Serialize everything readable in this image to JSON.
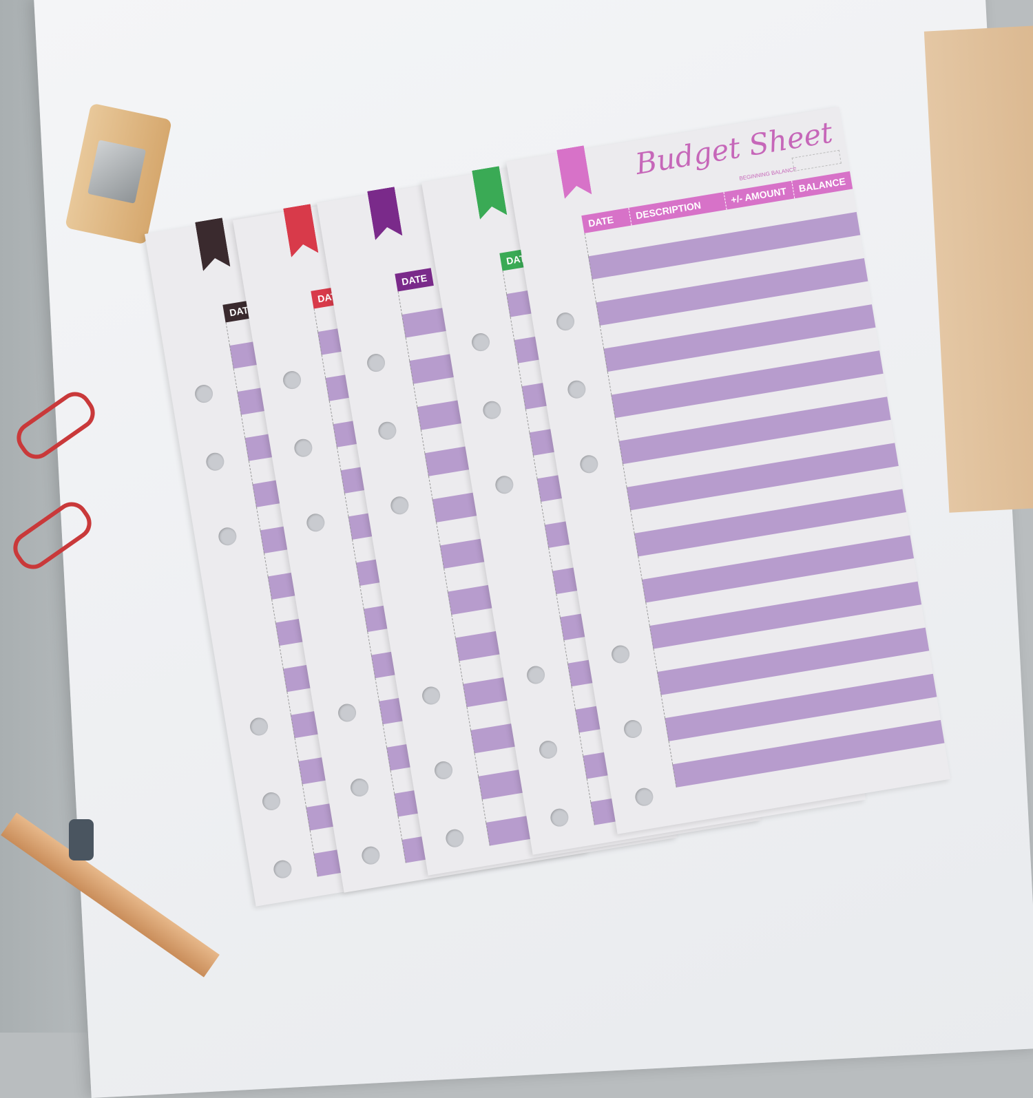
{
  "front_sheet": {
    "title": "Budget Sheet",
    "beginning_balance_label": "BEGINNING BALANCE",
    "columns": [
      "DATE",
      "DESCRIPTION",
      "+/- AMOUNT",
      "BALANCE"
    ],
    "tab_color": "#d772c8"
  },
  "back_sheets": [
    {
      "header": "DATE",
      "tab_color": "#3a2a2e"
    },
    {
      "header": "DATE",
      "tab_color": "#d83a4a"
    },
    {
      "header": "DATE",
      "tab_color": "#7a2a8a"
    },
    {
      "header": "DATE",
      "tab_color": "#3aaa55"
    }
  ],
  "stripe_color": "#b79ccd"
}
